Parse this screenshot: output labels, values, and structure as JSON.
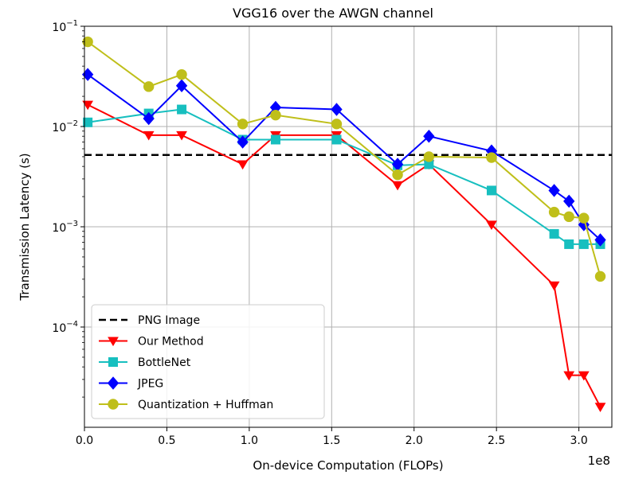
{
  "chart_data": {
    "type": "line",
    "title": "VGG16 over the AWGN channel",
    "xlabel": "On-device Computation (FLOPs)",
    "ylabel": "Transmission Latency (s)",
    "x_offset_label": "1e8",
    "xlim": [
      0,
      3.2
    ],
    "ylim_log10": [
      -5,
      -1
    ],
    "yscale": "log",
    "grid": true,
    "legend_position": "lower-left",
    "x_ticks": [
      {
        "value": 0.0,
        "label": "0.0"
      },
      {
        "value": 0.5,
        "label": "0.5"
      },
      {
        "value": 1.0,
        "label": "1.0"
      },
      {
        "value": 1.5,
        "label": "1.5"
      },
      {
        "value": 2.0,
        "label": "2.0"
      },
      {
        "value": 2.5,
        "label": "2.5"
      },
      {
        "value": 3.0,
        "label": "3.0"
      }
    ],
    "y_ticks": [
      {
        "exp": -4,
        "base": "10",
        "sup": "−4"
      },
      {
        "exp": -3,
        "base": "10",
        "sup": "−3"
      },
      {
        "exp": -2,
        "base": "10",
        "sup": "−2"
      },
      {
        "exp": -1,
        "base": "10",
        "sup": "−1"
      }
    ],
    "reference_line": {
      "name": "PNG Image",
      "y": 0.0052,
      "color": "#000000",
      "style": "dashed"
    },
    "series": [
      {
        "name": "Our Method",
        "color": "#ff0000",
        "marker": "triangle-down",
        "x": [
          0.02,
          0.39,
          0.59,
          0.96,
          1.16,
          1.53,
          1.9,
          2.09,
          2.47,
          2.85,
          2.94,
          3.03,
          3.13
        ],
        "y": [
          0.0165,
          0.0082,
          0.0082,
          0.0042,
          0.0082,
          0.0082,
          0.0026,
          0.0042,
          0.00105,
          0.00026,
          3.3e-05,
          3.3e-05,
          1.6e-05
        ]
      },
      {
        "name": "BottleNet",
        "color": "#17bfbf",
        "marker": "square",
        "x": [
          0.02,
          0.39,
          0.59,
          0.96,
          1.16,
          1.53,
          1.9,
          2.09,
          2.47,
          2.85,
          2.94,
          3.03,
          3.13
        ],
        "y": [
          0.011,
          0.0135,
          0.0148,
          0.0074,
          0.0074,
          0.0074,
          0.0041,
          0.0042,
          0.0023,
          0.00085,
          0.00067,
          0.00067,
          0.00067
        ]
      },
      {
        "name": "JPEG",
        "color": "#0000ff",
        "marker": "diamond",
        "x": [
          0.02,
          0.39,
          0.59,
          0.96,
          1.16,
          1.53,
          1.9,
          2.09,
          2.47,
          2.85,
          2.94,
          3.03,
          3.13
        ],
        "y": [
          0.033,
          0.012,
          0.0255,
          0.007,
          0.0155,
          0.0148,
          0.0042,
          0.008,
          0.0057,
          0.0023,
          0.0018,
          0.00105,
          0.00074
        ]
      },
      {
        "name": "Quantization + Huffman",
        "color": "#bfbf1a",
        "marker": "circle",
        "x": [
          0.02,
          0.39,
          0.59,
          0.96,
          1.16,
          1.53,
          1.9,
          2.09,
          2.47,
          2.85,
          2.94,
          3.03,
          3.13
        ],
        "y": [
          0.07,
          0.025,
          0.033,
          0.0106,
          0.013,
          0.0106,
          0.0033,
          0.005,
          0.0049,
          0.0014,
          0.00126,
          0.00122,
          0.00032
        ]
      }
    ],
    "legend_order": [
      "PNG Image",
      "Our Method",
      "BottleNet",
      "JPEG",
      "Quantization + Huffman"
    ]
  }
}
